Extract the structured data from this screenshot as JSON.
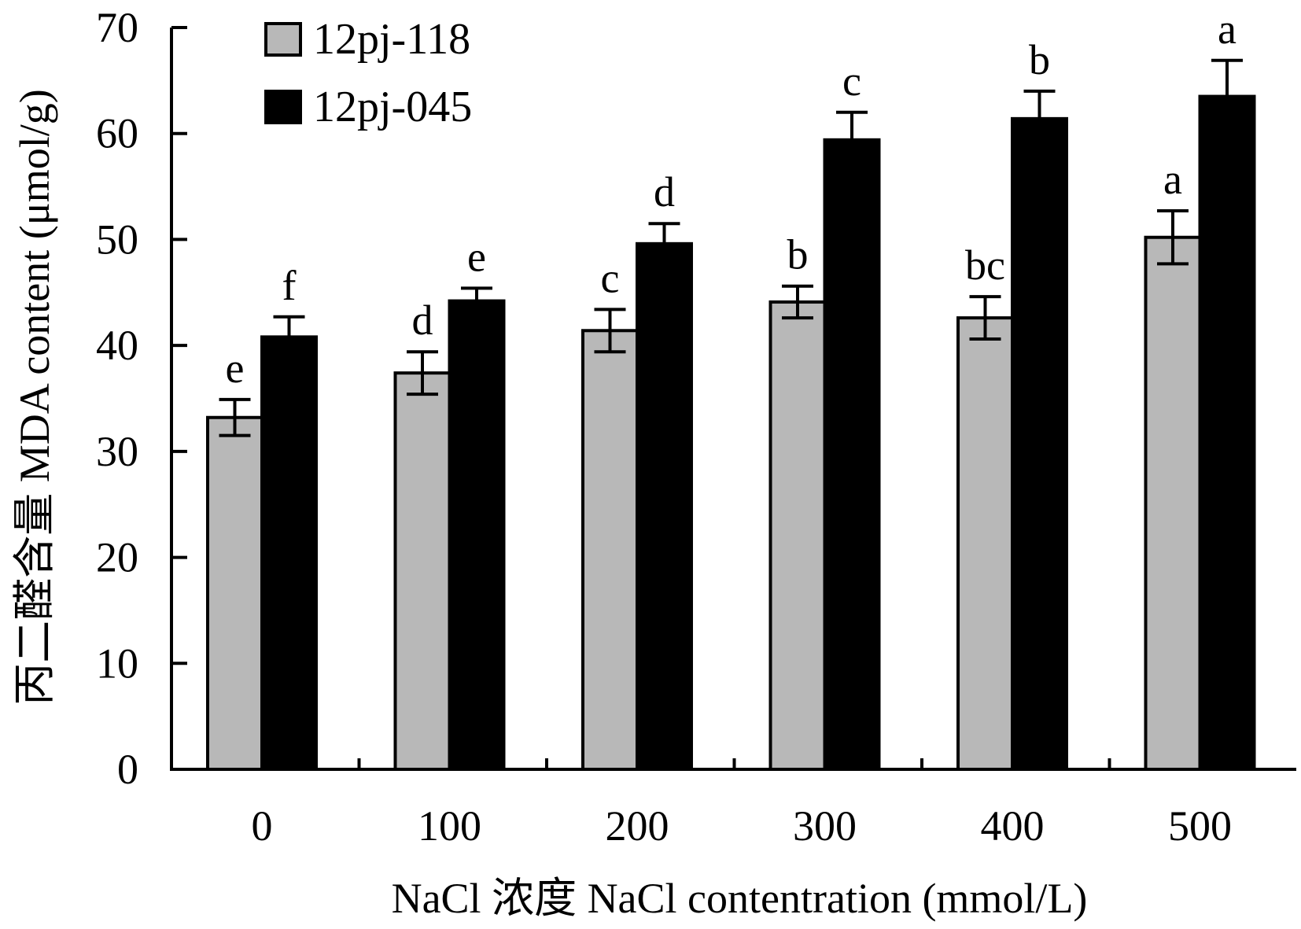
{
  "chart_data": {
    "type": "bar",
    "title": "",
    "xlabel": "NaCl 浓度 NaCl contentration (mmol/L)",
    "ylabel": "丙二醛含量 MDA content (μmol/g)",
    "ylim": [
      0,
      70
    ],
    "yticks": [
      0,
      10,
      20,
      30,
      40,
      50,
      60,
      70
    ],
    "categories": [
      "0",
      "100",
      "200",
      "300",
      "400",
      "500"
    ],
    "legend_position": "top-left",
    "series": [
      {
        "name": "12pj-118",
        "color": "#b8b8b8",
        "values": [
          33.2,
          37.4,
          41.4,
          44.1,
          42.6,
          50.2
        ],
        "errors": [
          1.7,
          2.0,
          2.0,
          1.5,
          2.0,
          2.5
        ],
        "labels": [
          "e",
          "d",
          "c",
          "b",
          "bc",
          "a"
        ]
      },
      {
        "name": "12pj-045",
        "color": "#000000",
        "values": [
          40.8,
          44.2,
          49.6,
          59.4,
          61.4,
          63.5
        ],
        "errors": [
          1.9,
          1.2,
          1.9,
          2.6,
          2.6,
          3.4
        ],
        "labels": [
          "f",
          "e",
          "d",
          "c",
          "b",
          "a"
        ]
      }
    ]
  }
}
